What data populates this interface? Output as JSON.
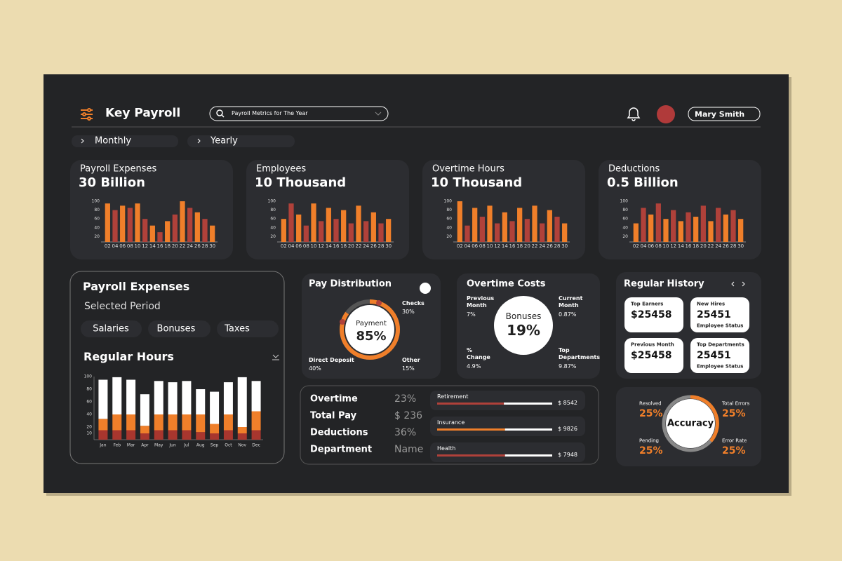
{
  "header": {
    "title": "Key Payroll",
    "search": "Payroll Metrics for The Year",
    "user": "Mary Smith"
  },
  "tabs": [
    "Monthly",
    "Yearly"
  ],
  "kpis": [
    {
      "label": "Payroll Expenses",
      "value": "30 Billion",
      "chart": {
        "type": "bar",
        "categories": [
          "02",
          "04",
          "06",
          "08",
          "10",
          "12",
          "14",
          "16",
          "18",
          "20",
          "22",
          "24",
          "26",
          "28",
          "30"
        ],
        "values": [
          95,
          80,
          90,
          85,
          95,
          60,
          45,
          30,
          55,
          70,
          100,
          85,
          75,
          60,
          45
        ],
        "colors": [
          "#f07f2a",
          "#b0413a"
        ],
        "ylim": [
          8,
          100
        ],
        "yticks": [
          20,
          40,
          60,
          80,
          100
        ]
      }
    },
    {
      "label": "Employees",
      "value": "10 Thousand",
      "chart": {
        "type": "bar",
        "categories": [
          "02",
          "04",
          "06",
          "08",
          "10",
          "12",
          "14",
          "16",
          "18",
          "20",
          "22",
          "24",
          "26",
          "28",
          "30"
        ],
        "values": [
          60,
          95,
          70,
          45,
          95,
          55,
          85,
          60,
          80,
          50,
          90,
          55,
          75,
          50,
          60
        ],
        "colors": [
          "#f07f2a",
          "#b0413a"
        ],
        "ylim": [
          8,
          100
        ],
        "yticks": [
          20,
          40,
          60,
          80,
          100
        ]
      }
    },
    {
      "label": "Overtime Hours",
      "value": "10 Thousand",
      "chart": {
        "type": "bar",
        "categories": [
          "02",
          "04",
          "06",
          "08",
          "10",
          "12",
          "14",
          "16",
          "18",
          "20",
          "22",
          "24",
          "26",
          "28",
          "30"
        ],
        "values": [
          100,
          45,
          85,
          65,
          90,
          50,
          75,
          55,
          85,
          60,
          90,
          50,
          80,
          65,
          50
        ],
        "colors": [
          "#f07f2a",
          "#b0413a"
        ],
        "ylim": [
          8,
          100
        ],
        "yticks": [
          20,
          40,
          60,
          80,
          100
        ]
      }
    },
    {
      "label": "Deductions",
      "value": "0.5 Billion",
      "chart": {
        "type": "bar",
        "categories": [
          "02",
          "04",
          "06",
          "08",
          "10",
          "12",
          "14",
          "16",
          "18",
          "20",
          "22",
          "24",
          "26",
          "28",
          "30"
        ],
        "values": [
          50,
          85,
          70,
          95,
          60,
          80,
          55,
          75,
          65,
          90,
          55,
          85,
          70,
          80,
          60
        ],
        "colors": [
          "#f07f2a",
          "#b0413a"
        ],
        "ylim": [
          8,
          100
        ],
        "yticks": [
          20,
          40,
          60,
          80,
          100
        ]
      }
    }
  ],
  "period": {
    "title": "Payroll Expenses",
    "subtitle": "Selected Period",
    "filters": [
      "Salaries",
      "Bonuses",
      "Taxes"
    ],
    "chart": {
      "type": "stacked_bar",
      "title": "Regular Hours",
      "categories": [
        "Jan",
        "Feb",
        "Mar",
        "Apr",
        "May",
        "Jun",
        "Jul",
        "Aug",
        "Sep",
        "Oct",
        "Nov",
        "Dec"
      ],
      "series": [
        {
          "color": "#a8362e",
          "values": [
            15,
            15,
            15,
            10,
            15,
            15,
            15,
            12,
            10,
            15,
            10,
            15
          ]
        },
        {
          "color": "#f07f2a",
          "values": [
            18,
            25,
            25,
            12,
            25,
            25,
            25,
            28,
            15,
            25,
            10,
            30
          ]
        },
        {
          "color": "#ffffff",
          "values": [
            62,
            59,
            55,
            50,
            53,
            51,
            53,
            40,
            51,
            51,
            79,
            48
          ]
        }
      ],
      "ylim": [
        0,
        100
      ],
      "yticks": [
        10,
        20,
        40,
        60,
        80,
        100
      ]
    }
  },
  "pay_distribution": {
    "title": "Pay Distribution",
    "center": {
      "label": "Payment",
      "value": 85,
      "value_label": "85%"
    },
    "items": [
      {
        "label": "Checks",
        "value": "30%"
      },
      {
        "label": "Direct Deposit",
        "value": "40%"
      },
      {
        "label": "Other",
        "value": "15%"
      }
    ]
  },
  "overtime_costs": {
    "title": "Overtime Costs",
    "center": {
      "label": "Bonuses",
      "value": "19%"
    },
    "items": [
      {
        "label": "Previous Month",
        "value": "7%"
      },
      {
        "label": "Current Month",
        "value": "0.87%"
      },
      {
        "label": "% Change",
        "value": "4.9%"
      },
      {
        "label": "Top Departments",
        "value": "9.87%"
      }
    ]
  },
  "regular_history": {
    "title": "Regular History",
    "cards": [
      {
        "label": "Top Earners",
        "value": "$25458"
      },
      {
        "label": "New Hires",
        "value": "25451",
        "note": "Employee Status"
      },
      {
        "label": "Previous Month",
        "value": "$25458"
      },
      {
        "label": "Top Departments",
        "value": "25451",
        "note": "Employee Status"
      }
    ]
  },
  "summary": {
    "rows": [
      [
        "Overtime",
        "23%"
      ],
      [
        "Total Pay",
        "$ 236"
      ],
      [
        "Deductions",
        "36%"
      ],
      [
        "Department",
        "Name"
      ]
    ],
    "bars": [
      {
        "label": "Retirement",
        "share": 58,
        "color": "#b0413a",
        "value": "$ 8542"
      },
      {
        "label": "Insurance",
        "share": 59,
        "color": "#f07f2a",
        "value": "$ 9826"
      },
      {
        "label": "Health",
        "share": 59,
        "color": "#b0413a",
        "value": "$ 7948"
      }
    ]
  },
  "accuracy": {
    "title": "Accuracy",
    "items": [
      {
        "label": "Resolved",
        "value": "25%"
      },
      {
        "label": "Total Errors",
        "value": "25%"
      },
      {
        "label": "Pending",
        "value": "25%"
      },
      {
        "label": "Error Rate",
        "value": "25%"
      }
    ]
  }
}
